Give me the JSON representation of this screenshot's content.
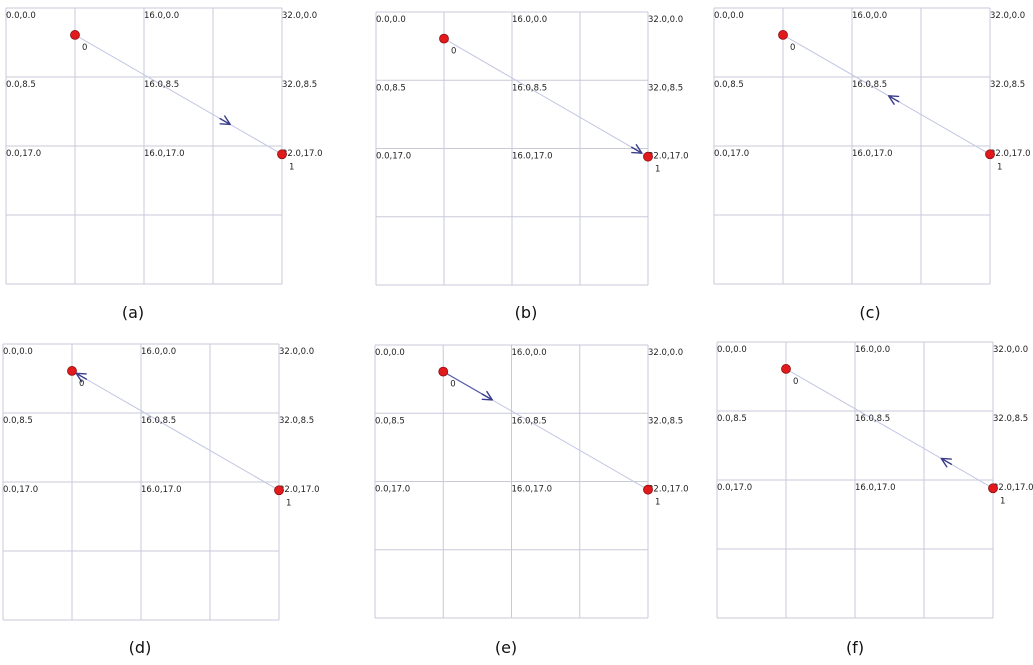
{
  "panels": [
    {
      "id": "a",
      "caption": "(a)",
      "labels": [
        "0.0,0.0",
        "16.0,0.0",
        "32.0,0.0",
        "0.0,8.5",
        "16.0,8.5",
        "32.0,8.5",
        "0.0,17.0",
        "16.0,17.0",
        "32.0,17.0"
      ],
      "nodes": [
        {
          "id": "0",
          "label": "0"
        },
        {
          "id": "1",
          "label": "1"
        }
      ],
      "arrow": {
        "t": 0.75,
        "direction": "forward",
        "trail": false
      }
    },
    {
      "id": "b",
      "caption": "(b)",
      "labels": [
        "0.0,0.0",
        "16.0,0.0",
        "32.0,0.0",
        "0.0,8.5",
        "16.0,8.5",
        "32.0,8.5",
        "0.0,17.0",
        "16.0,17.0",
        "32.0,17.0"
      ],
      "nodes": [
        {
          "id": "0",
          "label": "0"
        },
        {
          "id": "1",
          "label": "1"
        }
      ],
      "arrow": {
        "t": 0.97,
        "direction": "forward",
        "trail": false
      }
    },
    {
      "id": "c",
      "caption": "(c)",
      "labels": [
        "0.0,0.0",
        "16.0,0.0",
        "32.0,0.0",
        "0.0,8.5",
        "16.0,8.5",
        "32.0,8.5",
        "0.0,17.0",
        "16.0,17.0",
        "32.0,17.0"
      ],
      "nodes": [
        {
          "id": "0",
          "label": "0"
        },
        {
          "id": "1",
          "label": "1"
        }
      ],
      "arrow": {
        "t": 0.51,
        "direction": "backward",
        "trail": false
      }
    },
    {
      "id": "d",
      "caption": "(d)",
      "labels": [
        "0.0,0.0",
        "16.0,0.0",
        "32.0,0.0",
        "0.0,8.5",
        "16.0,8.5",
        "32.0,8.5",
        "0.0,17.0",
        "16.0,17.0",
        "32.0,17.0"
      ],
      "nodes": [
        {
          "id": "0",
          "label": "0"
        },
        {
          "id": "1",
          "label": "1"
        }
      ],
      "arrow": {
        "t": 0.02,
        "direction": "backward",
        "trail": false
      }
    },
    {
      "id": "e",
      "caption": "(e)",
      "labels": [
        "0.0,0.0",
        "16.0,0.0",
        "32.0,0.0",
        "0.0,8.5",
        "16.0,8.5",
        "32.0,8.5",
        "0.0,17.0",
        "16.0,17.0",
        "32.0,17.0"
      ],
      "nodes": [
        {
          "id": "0",
          "label": "0"
        },
        {
          "id": "1",
          "label": "1"
        }
      ],
      "arrow": {
        "t": 0.24,
        "direction": "forward",
        "trail": true
      }
    },
    {
      "id": "f",
      "caption": "(f)",
      "labels": [
        "0.0,0.0",
        "16.0,0.0",
        "32.0,0.0",
        "0.0,8.5",
        "16.0,8.5",
        "32.0,8.5",
        "0.0,17.0",
        "16.0,17.0",
        "32.0,17.0"
      ],
      "nodes": [
        {
          "id": "0",
          "label": "0"
        },
        {
          "id": "1",
          "label": "1"
        }
      ],
      "arrow": {
        "t": 0.75,
        "direction": "backward",
        "trail": false
      }
    }
  ],
  "colors": {
    "grid": "#c8cad8",
    "node_fill": "#e31a1c",
    "path": "#c2c6e2",
    "arrow": "#3a3e8c"
  }
}
